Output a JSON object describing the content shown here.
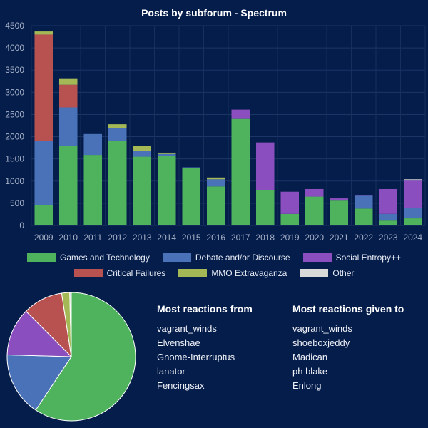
{
  "chart_data": [
    {
      "type": "bar",
      "stacked": true,
      "title": "Posts by subforum - Spectrum",
      "categories": [
        "2009",
        "2010",
        "2011",
        "2012",
        "2013",
        "2014",
        "2015",
        "2016",
        "2017",
        "2018",
        "2019",
        "2020",
        "2021",
        "2022",
        "2023",
        "2024"
      ],
      "ylim": [
        0,
        4500
      ],
      "yticks": [
        0,
        500,
        1000,
        1500,
        2000,
        2500,
        3000,
        3500,
        4000,
        4500
      ],
      "grid": true,
      "legend_position": "bottom",
      "series": [
        {
          "name": "Games and Technology",
          "color": "#4fb35e",
          "values": [
            460,
            1800,
            1590,
            1900,
            1550,
            1560,
            1300,
            880,
            2400,
            790,
            260,
            650,
            560,
            380,
            110,
            160
          ]
        },
        {
          "name": "Debate and/or Discourse",
          "color": "#4a72b8",
          "values": [
            1440,
            860,
            470,
            290,
            130,
            50,
            10,
            160,
            0,
            0,
            0,
            0,
            0,
            290,
            150,
            240
          ]
        },
        {
          "name": "Social Entropy++",
          "color": "#8a4ebf",
          "values": [
            0,
            0,
            0,
            0,
            0,
            0,
            0,
            0,
            210,
            1080,
            500,
            170,
            50,
            10,
            560,
            610
          ]
        },
        {
          "name": "Critical Failures",
          "color": "#b85250",
          "values": [
            2400,
            510,
            0,
            0,
            0,
            0,
            0,
            0,
            0,
            0,
            0,
            0,
            0,
            0,
            0,
            0
          ]
        },
        {
          "name": "MMO Extravaganza",
          "color": "#a4b856",
          "values": [
            70,
            130,
            0,
            90,
            110,
            30,
            0,
            40,
            0,
            0,
            0,
            0,
            0,
            0,
            0,
            0
          ]
        },
        {
          "name": "Other",
          "color": "#d9d9d9",
          "values": [
            0,
            0,
            0,
            0,
            0,
            0,
            0,
            0,
            0,
            0,
            0,
            0,
            0,
            0,
            0,
            30
          ]
        }
      ]
    },
    {
      "type": "pie",
      "labels": [
        "Games and Technology",
        "Debate and/or Discourse",
        "Social Entropy++",
        "Critical Failures",
        "MMO Extravaganza",
        "Other"
      ],
      "values": [
        59,
        16,
        12,
        10,
        2,
        0.4
      ],
      "colors": [
        "#4fb35e",
        "#4a72b8",
        "#8a4ebf",
        "#b85250",
        "#a4b856",
        "#d9d9d9"
      ]
    }
  ],
  "lists": {
    "reactions_from": {
      "title": "Most reactions from",
      "items": [
        "vagrant_winds",
        "Elvenshae",
        "Gnome-Interruptus",
        "lanator",
        "Fencingsax"
      ]
    },
    "reactions_given": {
      "title": "Most reactions given to",
      "items": [
        "vagrant_winds",
        "shoeboxjeddy",
        "Madican",
        "ph blake",
        "Enlong"
      ]
    }
  }
}
